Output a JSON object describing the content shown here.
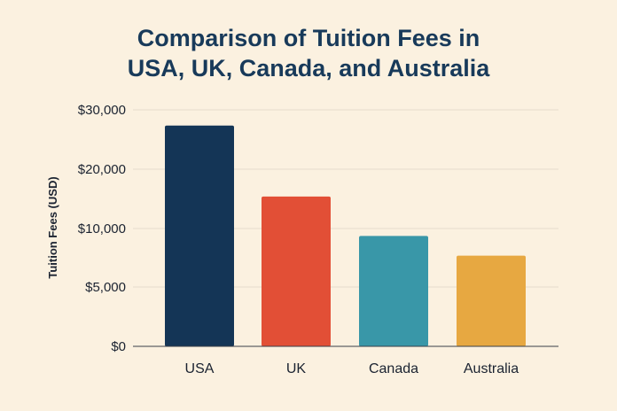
{
  "chart_data": {
    "type": "bar",
    "title": [
      "Comparison of Tuition Fees in",
      "USA, UK, Canada, and Australia"
    ],
    "xlabel": "",
    "ylabel": "Tuition Fees (USD)",
    "categories": [
      "USA",
      "UK",
      "Canada",
      "Australia"
    ],
    "values": [
      28000,
      19000,
      14000,
      11500
    ],
    "ylim": [
      0,
      30000
    ],
    "y_tick_labels": [
      "$0",
      "$5,000",
      "$10,000",
      "$20,000",
      "$30,000"
    ],
    "bar_colors": [
      "#143556",
      "#e24f36",
      "#3997a8",
      "#e7a841"
    ],
    "grid": true,
    "legend": "none"
  }
}
